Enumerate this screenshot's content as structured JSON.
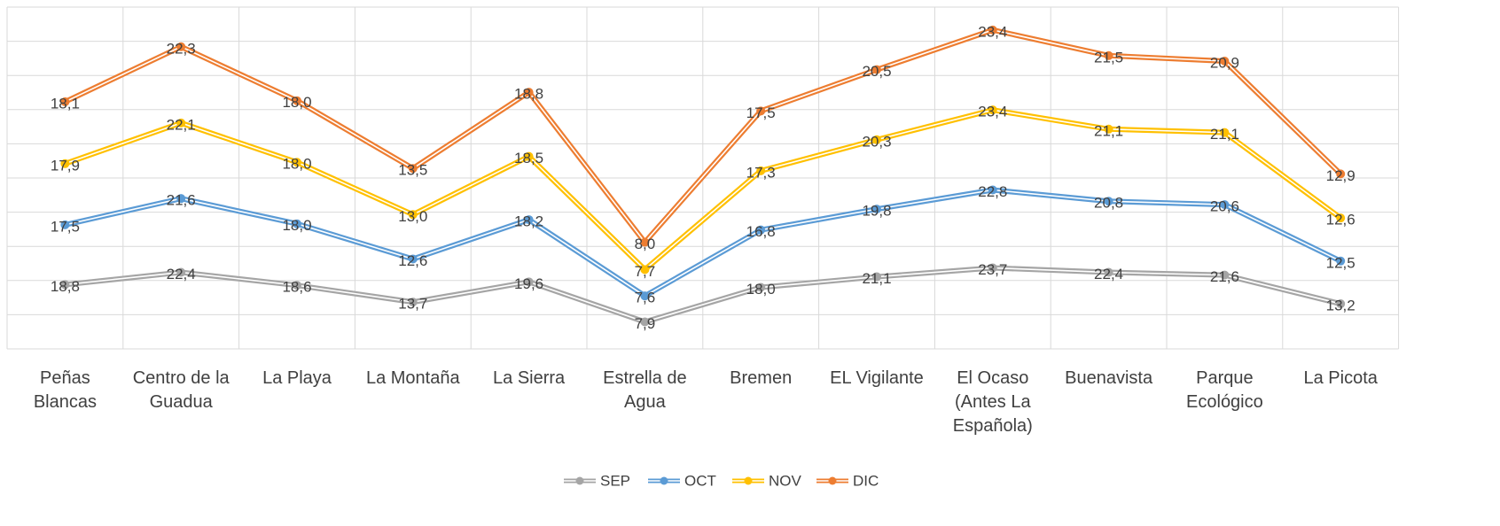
{
  "chart_data": {
    "type": "line",
    "stacked": true,
    "categories": [
      "Peñas Blancas",
      "Centro de la Guadua",
      "La Playa",
      "La Montaña",
      "La Sierra",
      "Estrella de Agua",
      "Bremen",
      "EL Vigilante",
      "El Ocaso (Antes La Española)",
      "Buenavista",
      "Parque Ecológico",
      "La Picota"
    ],
    "series": [
      {
        "name": "SEP",
        "color": "#a5a5a5",
        "values": [
          18.8,
          22.4,
          18.6,
          13.7,
          19.6,
          7.9,
          18.0,
          21.1,
          23.7,
          22.4,
          21.6,
          13.2
        ],
        "value_labels": [
          "18,8",
          "22,4",
          "18,6",
          "13,7",
          "19,6",
          "7,9",
          "18,0",
          "21,1",
          "23,7",
          "22,4",
          "21,6",
          "13,2"
        ]
      },
      {
        "name": "OCT",
        "color": "#5b9bd5",
        "values": [
          17.5,
          21.6,
          18.0,
          12.6,
          18.2,
          7.6,
          16.8,
          19.8,
          22.8,
          20.8,
          20.6,
          12.5
        ],
        "value_labels": [
          "17,5",
          "21,6",
          "18,0",
          "12,6",
          "18,2",
          "7,6",
          "16,8",
          "19,8",
          "22,8",
          "20,8",
          "20,6",
          "12,5"
        ]
      },
      {
        "name": "NOV",
        "color": "#ffc000",
        "values": [
          17.9,
          22.1,
          18.0,
          13.0,
          18.5,
          7.7,
          17.3,
          20.3,
          23.4,
          21.1,
          21.1,
          12.6
        ],
        "value_labels": [
          "17,9",
          "22,1",
          "18,0",
          "13,0",
          "18,5",
          "7,7",
          "17,3",
          "20,3",
          "23,4",
          "21,1",
          "21,1",
          "12,6"
        ]
      },
      {
        "name": "DIC",
        "color": "#ed7d31",
        "values": [
          18.1,
          22.3,
          18.0,
          13.5,
          18.8,
          8.0,
          17.5,
          20.5,
          23.4,
          21.5,
          20.9,
          12.9
        ],
        "value_labels": [
          "18,1",
          "22,3",
          "18,0",
          "13,5",
          "18,8",
          "8,0",
          "17,5",
          "20,5",
          "23,4",
          "21,5",
          "20,9",
          "12,9"
        ]
      }
    ],
    "ylim": [
      0,
      100
    ],
    "yticks": [
      0,
      10,
      20,
      30,
      40,
      50,
      60,
      70,
      80,
      90,
      100
    ],
    "grid": true,
    "legend": "bottom"
  }
}
